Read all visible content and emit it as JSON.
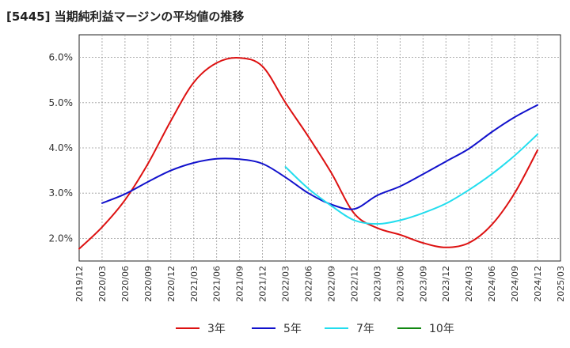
{
  "chart_data": {
    "type": "line",
    "title": "[5445]  当期純利益マージンの平均値の推移",
    "xlabel": "",
    "ylabel": "",
    "ylim": [
      1.5,
      6.5
    ],
    "y_ticks": [
      2.0,
      3.0,
      4.0,
      5.0,
      6.0
    ],
    "y_tick_labels": [
      "2.0%",
      "3.0%",
      "4.0%",
      "5.0%",
      "6.0%"
    ],
    "x_ticks": [
      "2019/12",
      "2020/03",
      "2020/06",
      "2020/09",
      "2020/12",
      "2021/03",
      "2021/06",
      "2021/09",
      "2021/12",
      "2022/03",
      "2022/06",
      "2022/09",
      "2022/12",
      "2023/03",
      "2023/06",
      "2023/09",
      "2023/12",
      "2024/03",
      "2024/06",
      "2024/09",
      "2024/12",
      "2025/03"
    ],
    "grid": true,
    "legend_position": "bottom",
    "series": [
      {
        "name": "3年",
        "color": "#dd1111",
        "x": [
          "2019/12",
          "2020/03",
          "2020/06",
          "2020/09",
          "2020/12",
          "2021/03",
          "2021/06",
          "2021/09",
          "2021/12",
          "2022/03",
          "2022/06",
          "2022/09",
          "2022/12",
          "2023/03",
          "2023/06",
          "2023/09",
          "2023/12",
          "2024/03",
          "2024/06",
          "2024/09",
          "2024/12"
        ],
        "values": [
          1.77,
          2.25,
          2.85,
          3.65,
          4.6,
          5.45,
          5.88,
          5.99,
          5.8,
          5.0,
          4.25,
          3.45,
          2.55,
          2.23,
          2.08,
          1.9,
          1.8,
          1.9,
          2.3,
          3.0,
          3.95
        ]
      },
      {
        "name": "5年",
        "color": "#1111cc",
        "x": [
          "2020/03",
          "2020/06",
          "2020/09",
          "2020/12",
          "2021/03",
          "2021/06",
          "2021/09",
          "2021/12",
          "2022/03",
          "2022/06",
          "2022/09",
          "2022/12",
          "2023/03",
          "2023/06",
          "2023/09",
          "2023/12",
          "2024/03",
          "2024/06",
          "2024/09",
          "2024/12"
        ],
        "values": [
          2.78,
          2.98,
          3.25,
          3.5,
          3.67,
          3.76,
          3.75,
          3.65,
          3.35,
          3.0,
          2.75,
          2.65,
          2.95,
          3.15,
          3.42,
          3.7,
          3.98,
          4.35,
          4.68,
          4.95
        ]
      },
      {
        "name": "7年",
        "color": "#22ddee",
        "x": [
          "2022/03",
          "2022/06",
          "2022/09",
          "2022/12",
          "2023/03",
          "2023/06",
          "2023/09",
          "2023/12",
          "2024/03",
          "2024/06",
          "2024/09",
          "2024/12"
        ],
        "values": [
          3.58,
          3.1,
          2.72,
          2.4,
          2.32,
          2.4,
          2.56,
          2.77,
          3.07,
          3.42,
          3.83,
          4.3
        ]
      },
      {
        "name": "10年",
        "color": "#118811",
        "x": [],
        "values": []
      }
    ]
  }
}
